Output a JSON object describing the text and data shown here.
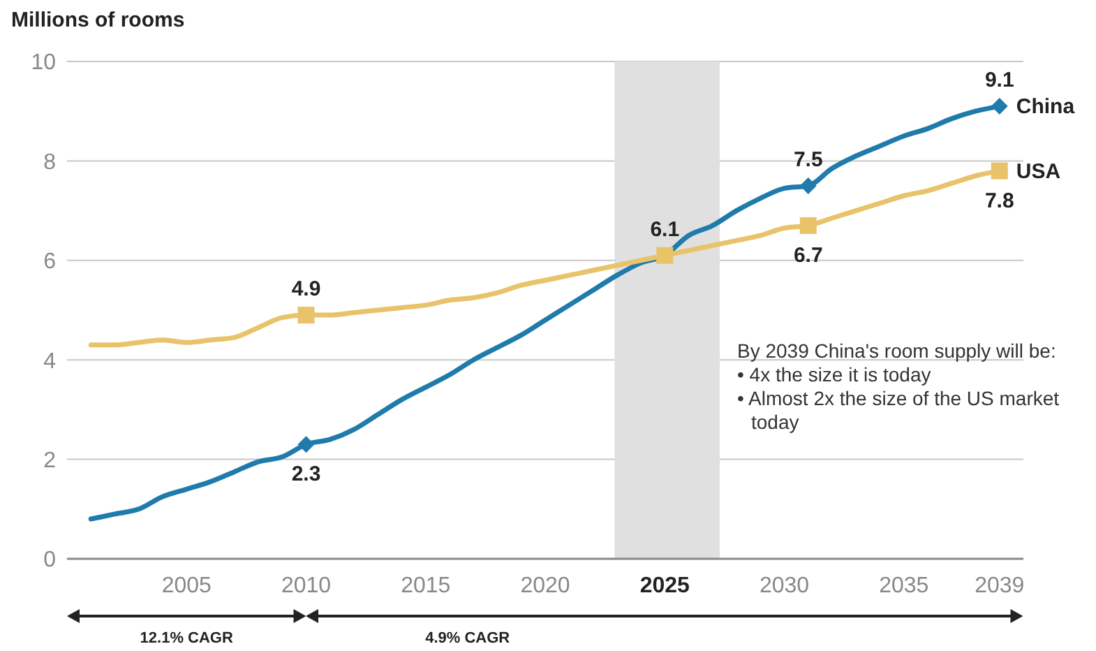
{
  "chart_data": {
    "type": "line",
    "ylabel": "Millions of rooms",
    "x": [
      2001,
      2002,
      2003,
      2004,
      2005,
      2006,
      2007,
      2008,
      2009,
      2010,
      2011,
      2012,
      2013,
      2014,
      2015,
      2016,
      2017,
      2018,
      2019,
      2020,
      2021,
      2022,
      2023,
      2024,
      2025,
      2026,
      2027,
      2028,
      2029,
      2030,
      2031,
      2032,
      2033,
      2034,
      2035,
      2036,
      2037,
      2038,
      2039
    ],
    "series": [
      {
        "name": "China",
        "color": "#1f7bab",
        "values": [
          0.8,
          0.9,
          1.0,
          1.25,
          1.4,
          1.55,
          1.75,
          1.95,
          2.05,
          2.3,
          2.4,
          2.6,
          2.9,
          3.2,
          3.45,
          3.7,
          4.0,
          4.25,
          4.5,
          4.8,
          5.1,
          5.4,
          5.7,
          5.95,
          6.1,
          6.5,
          6.7,
          7.0,
          7.25,
          7.45,
          7.5,
          7.85,
          8.1,
          8.3,
          8.5,
          8.65,
          8.85,
          9.0,
          9.1
        ],
        "value_labels": [
          null,
          null,
          null,
          null,
          null,
          null,
          null,
          null,
          null,
          "2.3",
          null,
          null,
          null,
          null,
          null,
          null,
          null,
          null,
          null,
          null,
          null,
          null,
          null,
          null,
          null,
          null,
          null,
          null,
          null,
          null,
          "7.5",
          null,
          null,
          null,
          null,
          null,
          null,
          null,
          "9.1"
        ]
      },
      {
        "name": "USA",
        "color": "#e8c36a",
        "values": [
          4.3,
          4.3,
          4.35,
          4.4,
          4.35,
          4.4,
          4.45,
          4.65,
          4.85,
          4.9,
          4.9,
          4.95,
          5.0,
          5.05,
          5.1,
          5.2,
          5.25,
          5.35,
          5.5,
          5.6,
          5.7,
          5.8,
          5.9,
          6.0,
          6.1,
          6.2,
          6.3,
          6.4,
          6.5,
          6.65,
          6.7,
          6.85,
          7.0,
          7.15,
          7.3,
          7.4,
          7.55,
          7.7,
          7.8
        ],
        "value_labels": [
          null,
          null,
          null,
          null,
          null,
          null,
          null,
          null,
          null,
          "4.9",
          null,
          null,
          null,
          null,
          null,
          null,
          null,
          null,
          null,
          null,
          null,
          null,
          null,
          null,
          "6.1",
          null,
          null,
          null,
          null,
          null,
          "6.7",
          null,
          null,
          null,
          null,
          null,
          null,
          null,
          "7.8"
        ]
      }
    ],
    "xlim": [
      2000,
      2040
    ],
    "xticks": [
      2005,
      2010,
      2015,
      2020,
      2025,
      2030,
      2035,
      2039
    ],
    "ylim": [
      0,
      10
    ],
    "yticks": [
      0,
      2,
      4,
      6,
      8,
      10
    ],
    "grid": "y",
    "legend": false,
    "bands": [
      {
        "axis": "x",
        "from": 2022.9,
        "to": 2027.3,
        "color": "#e0e0e0"
      }
    ],
    "annotations": [
      "By 2039 China's room supply will be:\n• 4x the size it is today\n• Almost 2x the size of the US market today",
      "12.1% CAGR",
      "4.9% CAGR"
    ]
  }
}
